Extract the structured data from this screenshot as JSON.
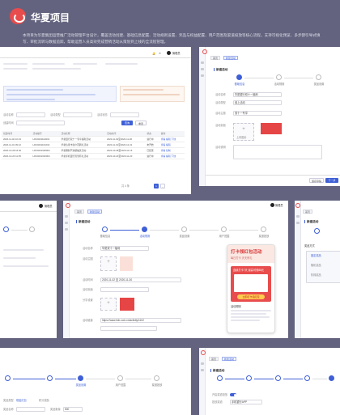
{
  "header": {
    "title": "华夏项目",
    "description": "本项目为华夏集团运营推广活动管理平台设计，覆盖活动创建、基础信息配置、活动规则设置、奖品与权益配置、用户范围及渠道投放等核心流程，支持可视化预览、多步骤引导式填写、审批流转与数据追踪，帮助运营人员高效完成营销活动从策划到上线的全流程管理。"
  },
  "common": {
    "username": "管理员",
    "tab_home": "首页",
    "tab_current": "新建活动",
    "page_title": "新建活动",
    "btn_cancel": "取消",
    "btn_save": "保存草稿",
    "btn_next": "下一步",
    "btn_prev": "上一步",
    "btn_search": "查询",
    "btn_reset": "重置",
    "upload_label": "上传图片"
  },
  "steps": [
    "基础信息",
    "活动规则",
    "奖品设置",
    "用户范围",
    "渠道投放"
  ],
  "panel_list": {
    "filter_labels": [
      "活动名称",
      "活动类型",
      "活动状态",
      "创建时间"
    ],
    "tags": [
      "全部",
      "进行中",
      "已结束",
      "未开始",
      "草稿"
    ],
    "columns": [
      "创建时间",
      "活动编号",
      "活动名称",
      "活动时间",
      "状态",
      "操作"
    ],
    "rows": [
      [
        "2020-11-02 10:23",
        "HX20201102001",
        "华夏银行双十一专享福利活动",
        "2020-11-02至2020-11-30",
        "进行中",
        "查看 编辑 下线"
      ],
      [
        "2020-11-01 09:12",
        "HX20201101002",
        "华夏信用卡新户首刷礼活动",
        "2020-11-01至2020-12-31",
        "未开始",
        "查看 编辑"
      ],
      [
        "2020-10-28 16:40",
        "HX20201028003",
        "华夏理财节满额抽奖活动",
        "2020-10-28至2020-11-15",
        "已结束",
        "查看 复制"
      ],
      [
        "2020-10-20 11:05",
        "HX20201020004",
        "华夏手机银行签到有礼活动",
        "2020-10-20至2020-11-20",
        "进行中",
        "查看 编辑 下线"
      ]
    ],
    "pagination": "共 4 条"
  },
  "panel_basic": {
    "labels": [
      "活动名称",
      "活动类型",
      "活动主题",
      "活动封面",
      "活动说明"
    ],
    "values": [
      "华夏银行双十一福利",
      "线上活动",
      "双十一专享",
      "",
      ""
    ]
  },
  "panel_rules": {
    "labels": [
      "活动名称",
      "活动主图",
      "活动时间",
      "活动页面",
      "分享设置",
      "活动链接"
    ],
    "values": [
      "华夏双十一福利",
      "",
      "2020-11-02 至 2020-11-30",
      "",
      "",
      "https://www.hxb.com.cn/activity/1102"
    ]
  },
  "phone_preview": {
    "banner_title": "打卡领红包活动",
    "banner_sub": "每日打卡 天天有礼",
    "card_title": "连续打卡7天 最高可领88元",
    "button": "立即打卡领红包",
    "rule_title": "活动规则"
  },
  "panel_prize": {
    "section": "奖品方式",
    "options": [
      "固定奖品",
      "随机奖品",
      "阶梯奖品"
    ]
  },
  "panel_bottom_left": {
    "labels": [
      "奖品类型",
      "奖品名称",
      "奖品数量"
    ],
    "options": [
      "现金红包",
      "积分奖励"
    ],
    "value": "500"
  },
  "panel_bottom_right": {
    "labels": [
      "开启渠道投放",
      "投放渠道"
    ],
    "value": "手机银行APP"
  },
  "colors": {
    "background": "#63637f",
    "primary": "#3e5fd6",
    "brand_red": "#e84c4c"
  }
}
